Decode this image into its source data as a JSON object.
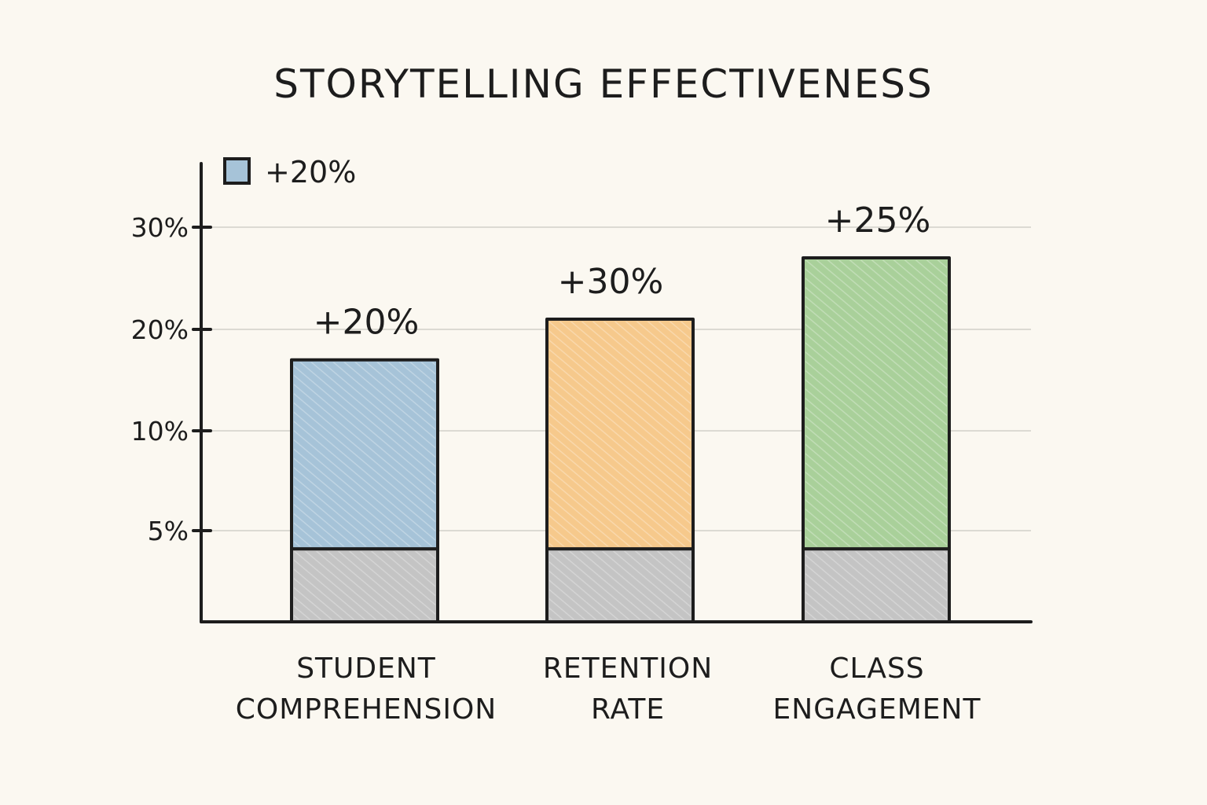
{
  "chart_data": {
    "type": "bar",
    "title": "STORYTELLING EFFECTIVENESS",
    "categories": [
      [
        "STUDENT",
        "COMPREHENSION"
      ],
      [
        "RETENTION",
        "RATE"
      ],
      [
        "CLASS",
        "ENGAGEMENT"
      ]
    ],
    "y_ticks": [
      {
        "value": 5,
        "label": "5%"
      },
      {
        "value": 10,
        "label": "10%"
      },
      {
        "value": 20,
        "label": "20%"
      },
      {
        "value": 30,
        "label": "30%"
      }
    ],
    "baseline_value": 4,
    "values": [
      17,
      21,
      27
    ],
    "data_labels": [
      "+20%",
      "+30%",
      "+25%"
    ],
    "colors": [
      "#a6c3d8",
      "#f6c98c",
      "#a9d09a"
    ],
    "baseline_color": "#c4c4c4",
    "ylim": [
      0,
      34
    ],
    "grid": true,
    "legend": {
      "label": "+20%",
      "color": "#a6c3d8",
      "position": "top-left"
    }
  }
}
